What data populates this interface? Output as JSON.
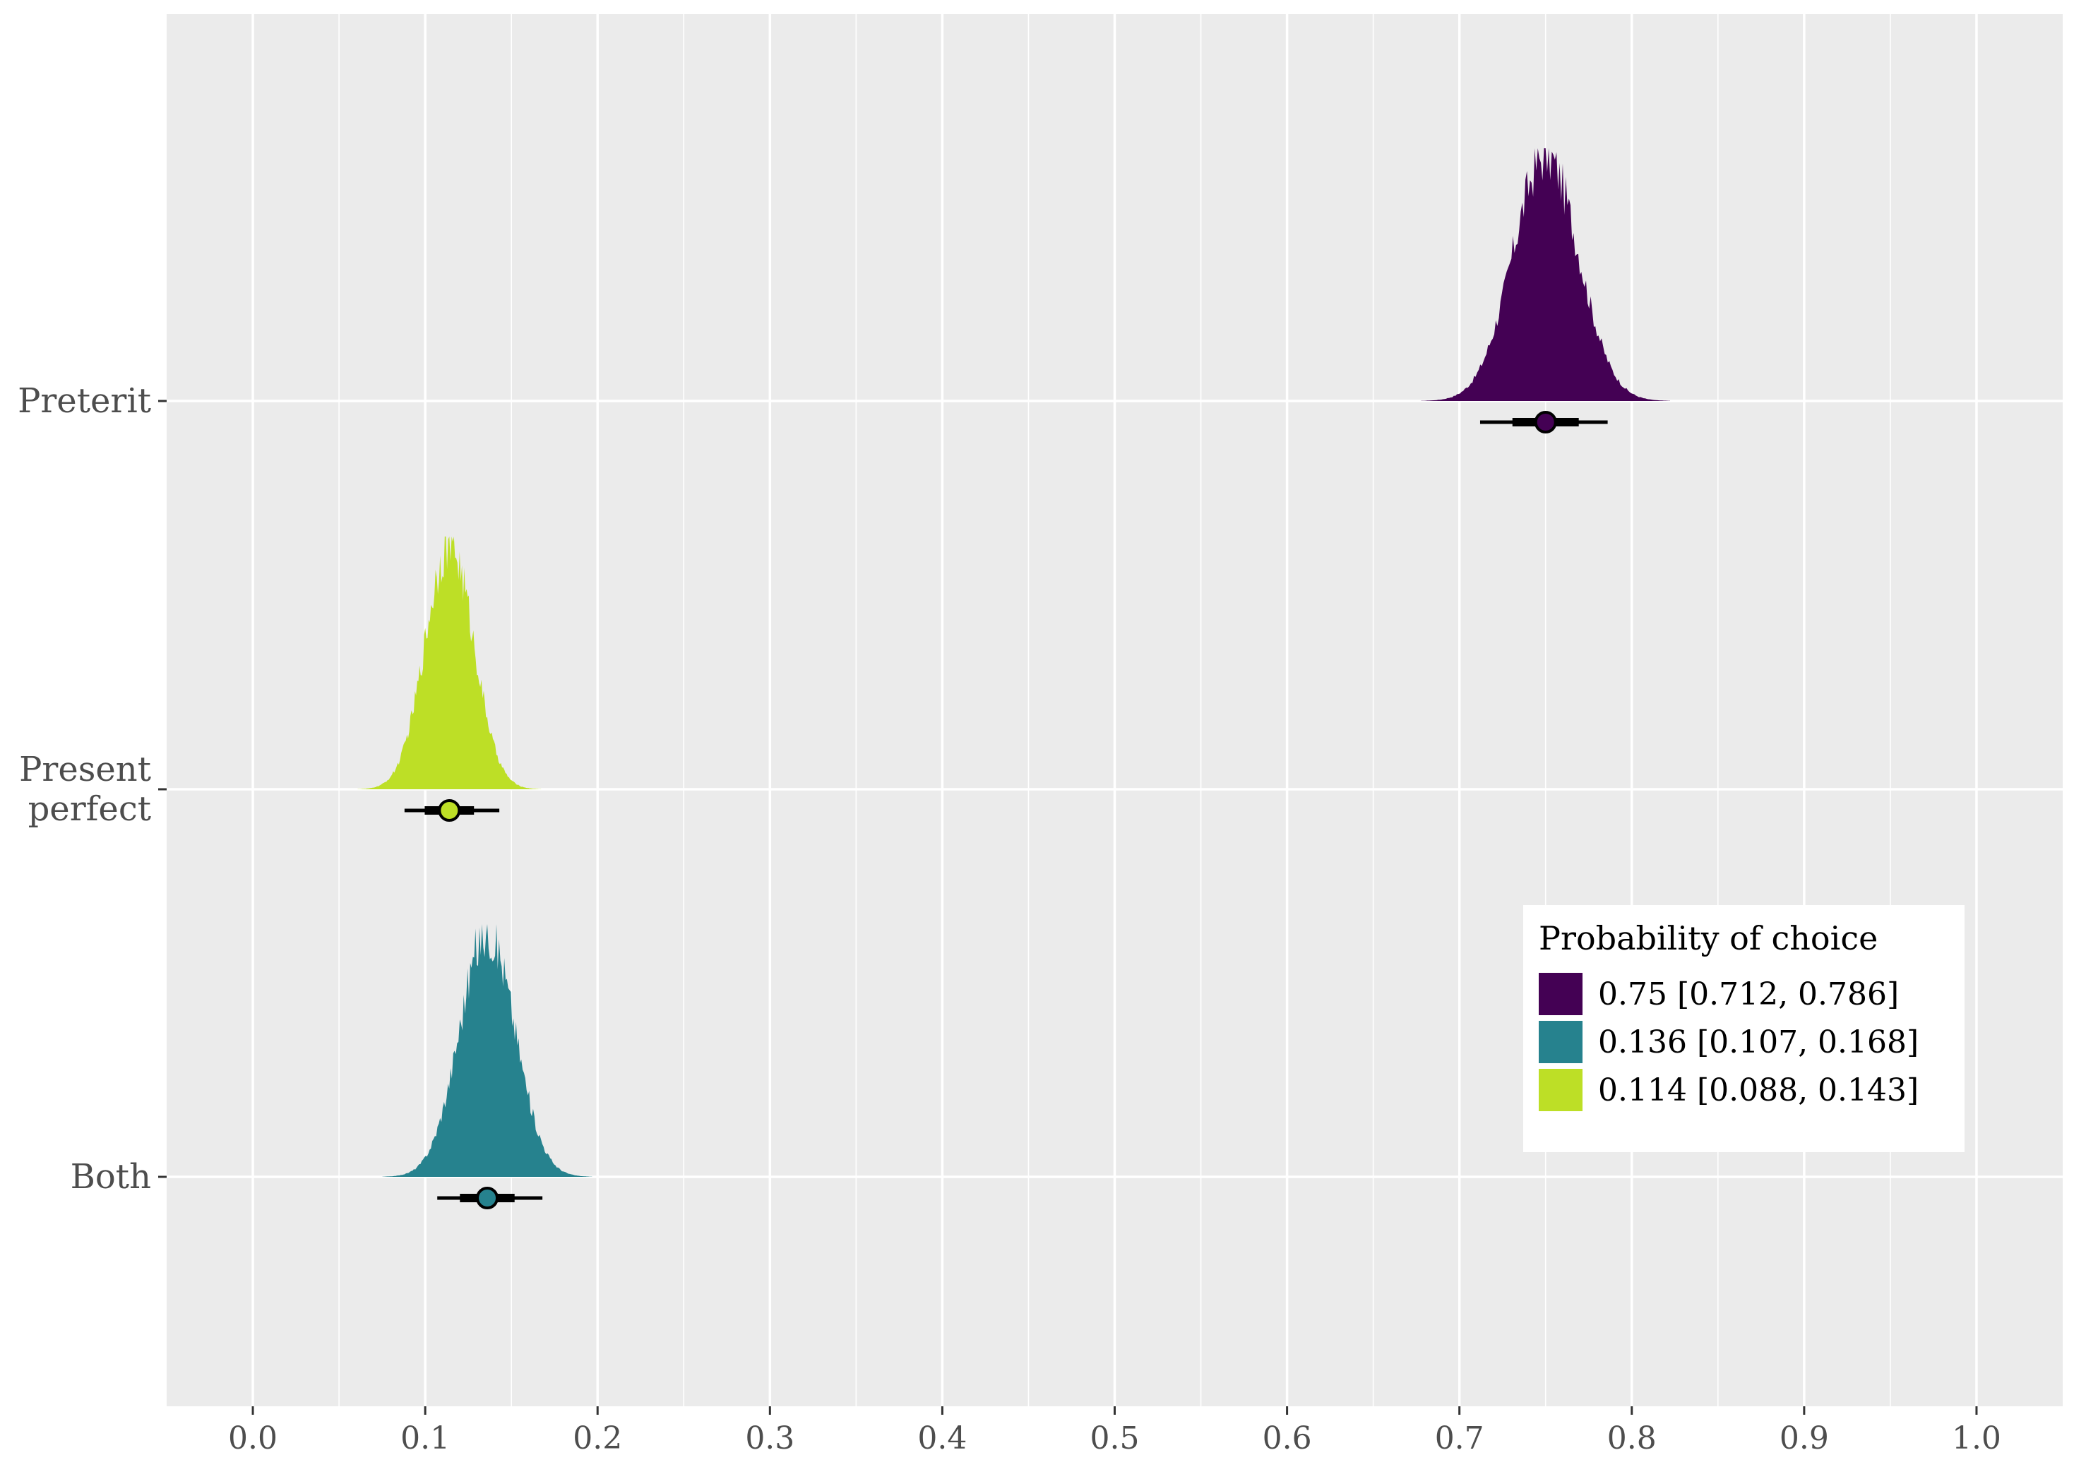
{
  "chart_data": {
    "type": "density",
    "xlim": [
      -0.05,
      1.05
    ],
    "x_ticks": [
      "0.0",
      "0.1",
      "0.2",
      "0.3",
      "0.4",
      "0.5",
      "0.6",
      "0.7",
      "0.8",
      "0.9",
      "1.0"
    ],
    "y_categories": [
      "Preterit",
      "Present perfect",
      "Both"
    ],
    "y_tick_labels": [
      [
        "Preterit"
      ],
      [
        "Present",
        "perfect"
      ],
      [
        "Both"
      ]
    ],
    "grid": true,
    "legend": {
      "title": "Probability of choice",
      "position": "bottom-right",
      "entries": [
        {
          "label": "0.75 [0.712, 0.786]",
          "color": "#440154"
        },
        {
          "label": "0.136 [0.107, 0.168]",
          "color": "#26828e"
        },
        {
          "label": "0.114 [0.088, 0.143]",
          "color": "#bddf26"
        }
      ]
    },
    "series": [
      {
        "category": "Preterit",
        "mean": 0.75,
        "lower": 0.712,
        "upper": 0.786,
        "sd": 0.019,
        "color": "#440154"
      },
      {
        "category": "Present perfect",
        "mean": 0.114,
        "lower": 0.088,
        "upper": 0.143,
        "sd": 0.014,
        "color": "#bddf26"
      },
      {
        "category": "Both",
        "mean": 0.136,
        "lower": 0.107,
        "upper": 0.168,
        "sd": 0.016,
        "color": "#26828e"
      }
    ]
  }
}
